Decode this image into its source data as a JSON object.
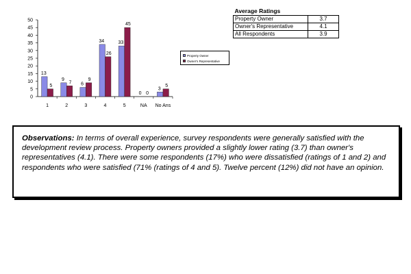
{
  "chart_data": {
    "type": "bar",
    "categories": [
      "1",
      "2",
      "3",
      "4",
      "5",
      "NA",
      "No Ans"
    ],
    "series": [
      {
        "name": "Property Owner",
        "values": [
          13,
          9,
          6,
          34,
          33,
          0,
          3
        ],
        "color": "#8a8ae6"
      },
      {
        "name": "Owner's Representative",
        "values": [
          5,
          7,
          9,
          26,
          45,
          0,
          5
        ],
        "color": "#8b1d4a"
      }
    ],
    "yticks": [
      "0",
      "5",
      "10",
      "15",
      "20",
      "25",
      "30",
      "35",
      "40",
      "45",
      "50"
    ],
    "ylim": [
      0,
      50
    ],
    "legend_position": "right",
    "grid": false
  },
  "ratings": {
    "title": "Average Ratings",
    "rows": [
      {
        "label": "Property Owner",
        "value": "3.7"
      },
      {
        "label": "Owner's Representative",
        "value": "4.1"
      },
      {
        "label": "All Respondents",
        "value": "3.9"
      }
    ]
  },
  "observations": {
    "heading": "Observations:",
    "text": "In terms of overall experience, survey respondents were generally satisfied with the development review process.  Property owners provided a slightly lower rating (3.7) than owner's representatives (4.1). There were some respondents (17%) who were dissatisfied (ratings of 1 and 2) and respondents who were satisfied (71% (ratings of 4 and 5). Twelve percent (12%) did not have an opinion."
  }
}
